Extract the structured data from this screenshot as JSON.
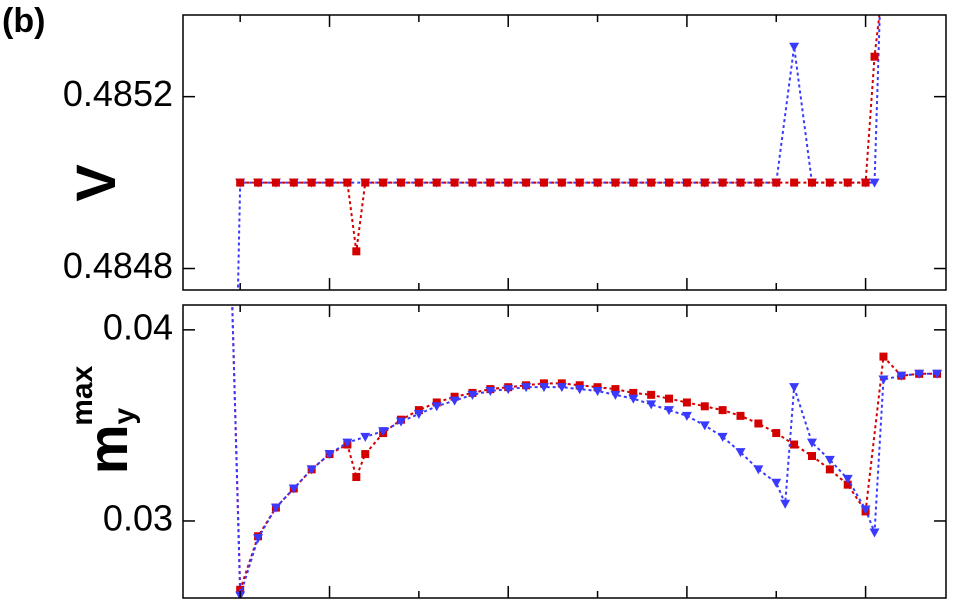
{
  "panel_label": "(b)",
  "chart_data": [
    {
      "type": "line",
      "ylabel": "V",
      "xlim": [
        1.8,
        44.5
      ],
      "xticks": [
        5,
        10,
        15,
        20,
        25,
        30,
        35,
        40
      ],
      "ylim": [
        0.48475,
        0.48539
      ],
      "yticks": [
        0.4848,
        0.4852
      ],
      "grid": false,
      "series": [
        {
          "name": null,
          "color": "#3a3aff",
          "marker": "triangle-down",
          "x": [
            4.85,
            5,
            6,
            7,
            8,
            9,
            10,
            11,
            12,
            13,
            14,
            15,
            16,
            17,
            18,
            19,
            20,
            21,
            22,
            23,
            24,
            25,
            26,
            27,
            28,
            29,
            30,
            31,
            32,
            33,
            34,
            35,
            36,
            37,
            38,
            39,
            40,
            40.5,
            40.8
          ],
          "values": [
            0.4847,
            0.485,
            0.485,
            0.485,
            0.485,
            0.485,
            0.485,
            0.485,
            0.485,
            0.485,
            0.485,
            0.485,
            0.485,
            0.485,
            0.485,
            0.485,
            0.485,
            0.485,
            0.485,
            0.485,
            0.485,
            0.485,
            0.485,
            0.485,
            0.485,
            0.485,
            0.485,
            0.485,
            0.485,
            0.485,
            0.485,
            0.485,
            0.485316,
            0.485,
            0.485,
            0.485,
            0.485,
            0.485,
            0.4854
          ]
        },
        {
          "name": null,
          "color": "#d40000",
          "marker": "square",
          "x": [
            5,
            6,
            7,
            8,
            9,
            10,
            11,
            11.5,
            12,
            13,
            14,
            15,
            16,
            17,
            18,
            19,
            20,
            21,
            22,
            23,
            24,
            25,
            26,
            27,
            28,
            29,
            30,
            31,
            32,
            33,
            34,
            35,
            36,
            37,
            38,
            39,
            40,
            40.5,
            40.8
          ],
          "values": [
            0.485,
            0.485,
            0.485,
            0.485,
            0.485,
            0.485,
            0.485,
            0.48484,
            0.485,
            0.485,
            0.485,
            0.485,
            0.485,
            0.485,
            0.485,
            0.485,
            0.485,
            0.485,
            0.485,
            0.485,
            0.485,
            0.485,
            0.485,
            0.485,
            0.485,
            0.485,
            0.485,
            0.485,
            0.485,
            0.485,
            0.485,
            0.485,
            0.485,
            0.485,
            0.485,
            0.485,
            0.485,
            0.485293,
            0.4854
          ]
        }
      ]
    },
    {
      "type": "line",
      "ylabel": {
        "base": "m",
        "sub": "y",
        "sup": "max"
      },
      "xlim": [
        1.8,
        44.5
      ],
      "xticks": [
        5,
        10,
        15,
        20,
        25,
        30,
        35,
        40
      ],
      "ylim": [
        0.02597,
        0.0413
      ],
      "yticks": [
        0.03,
        0.04
      ],
      "grid": false,
      "series": [
        {
          "name": null,
          "color": "#d40000",
          "marker": "square",
          "x": [
            4.55,
            5,
            6,
            7,
            8,
            9,
            10,
            11,
            11.5,
            12,
            13,
            14,
            15,
            16,
            17,
            18,
            19,
            20,
            21,
            22,
            23,
            24,
            25,
            26,
            27,
            28,
            29,
            30,
            31,
            32,
            33,
            34,
            35,
            36,
            37,
            38,
            39,
            40,
            41,
            42,
            43,
            44
          ],
          "values": [
            0.0415,
            0.0264,
            0.0292,
            0.0307,
            0.0317,
            0.0327,
            0.0335,
            0.034,
            0.0323,
            0.0335,
            0.0346,
            0.0353,
            0.0358,
            0.0362,
            0.0365,
            0.0367,
            0.0369,
            0.037,
            0.0371,
            0.0372,
            0.0372,
            0.0371,
            0.037,
            0.0369,
            0.0367,
            0.0366,
            0.0364,
            0.0362,
            0.036,
            0.0358,
            0.0355,
            0.0351,
            0.0346,
            0.034,
            0.0334,
            0.0327,
            0.0319,
            0.0305,
            0.0386,
            0.0376,
            0.0377,
            0.0377
          ]
        },
        {
          "name": null,
          "color": "#3a3aff",
          "marker": "triangle-down",
          "x": [
            4.55,
            5,
            6,
            7,
            8,
            9,
            10,
            11,
            12,
            13,
            14,
            15,
            16,
            17,
            18,
            19,
            20,
            21,
            22,
            23,
            24,
            25,
            26,
            27,
            28,
            29,
            30,
            31,
            32,
            33,
            34,
            35,
            35.5,
            36,
            37,
            38,
            39,
            40,
            40.5,
            41,
            42,
            43,
            44
          ],
          "values": [
            0.0415,
            0.0261,
            0.0291,
            0.0307,
            0.0317,
            0.0327,
            0.0335,
            0.0341,
            0.0344,
            0.0347,
            0.0352,
            0.0356,
            0.036,
            0.0363,
            0.0366,
            0.0368,
            0.0369,
            0.037,
            0.037,
            0.037,
            0.0369,
            0.0368,
            0.0366,
            0.0364,
            0.0361,
            0.0358,
            0.0355,
            0.035,
            0.0344,
            0.0336,
            0.0327,
            0.032,
            0.0309,
            0.037,
            0.0341,
            0.0332,
            0.0322,
            0.0306,
            0.0294,
            0.0374,
            0.0376,
            0.0377,
            0.0377
          ]
        }
      ]
    }
  ]
}
